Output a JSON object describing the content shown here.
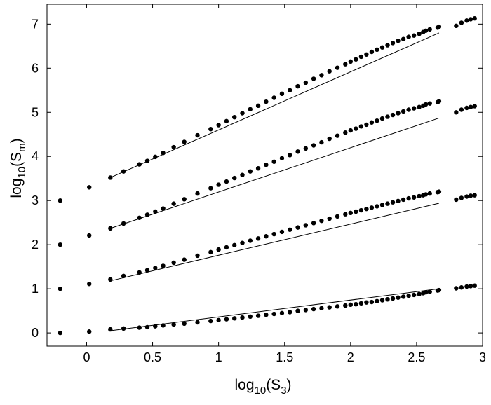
{
  "chart_data": {
    "type": "scatter",
    "title": "",
    "xlabel": {
      "base": "log",
      "subscript": "10",
      "inner": "(S",
      "inner_subscript": "3",
      "close": ")"
    },
    "ylabel": {
      "base": "log",
      "subscript": "10",
      "inner": "(S",
      "inner_subscript": "m",
      "close": ")"
    },
    "xlim": [
      -0.3,
      3.0
    ],
    "ylim": [
      -0.3,
      7.45
    ],
    "xticks": [
      0,
      0.5,
      1,
      1.5,
      2,
      2.5,
      3
    ],
    "xtick_labels": [
      "0",
      "0.5",
      "1",
      "1.5",
      "2",
      "2.5",
      "3"
    ],
    "yticks": [
      0,
      1,
      2,
      3,
      4,
      5,
      6,
      7
    ],
    "ytick_labels": [
      "0",
      "1",
      "2",
      "3",
      "4",
      "5",
      "6",
      "7"
    ],
    "grid": false,
    "legend": "none",
    "marker_color": "#000000",
    "line_color": "#000000",
    "x": [
      -0.2,
      0.02,
      0.18,
      0.28,
      0.4,
      0.46,
      0.52,
      0.58,
      0.66,
      0.74,
      0.84,
      0.94,
      1.0,
      1.06,
      1.12,
      1.18,
      1.24,
      1.3,
      1.36,
      1.42,
      1.48,
      1.54,
      1.6,
      1.66,
      1.72,
      1.78,
      1.84,
      1.9,
      1.96,
      2.0,
      2.04,
      2.08,
      2.12,
      2.16,
      2.2,
      2.24,
      2.28,
      2.32,
      2.36,
      2.4,
      2.44,
      2.48,
      2.52,
      2.55,
      2.57,
      2.6,
      2.66,
      2.67,
      2.8,
      2.84,
      2.88,
      2.91,
      2.94
    ],
    "series": [
      {
        "values": [
          3.0,
          3.3,
          3.52,
          3.66,
          3.82,
          3.9,
          3.99,
          4.08,
          4.21,
          4.33,
          4.48,
          4.62,
          4.71,
          4.8,
          4.89,
          4.98,
          5.07,
          5.15,
          5.24,
          5.33,
          5.42,
          5.5,
          5.59,
          5.67,
          5.76,
          5.84,
          5.93,
          6.01,
          6.09,
          6.15,
          6.2,
          6.26,
          6.31,
          6.37,
          6.42,
          6.47,
          6.52,
          6.57,
          6.62,
          6.66,
          6.71,
          6.74,
          6.78,
          6.82,
          6.85,
          6.88,
          6.92,
          6.94,
          6.96,
          7.03,
          7.08,
          7.11,
          7.13
        ],
        "fit": {
          "x": [
            0.18,
            2.67
          ],
          "y": [
            3.52,
            6.8
          ]
        }
      },
      {
        "values": [
          2.0,
          2.21,
          2.37,
          2.48,
          2.61,
          2.68,
          2.75,
          2.82,
          2.93,
          3.03,
          3.16,
          3.28,
          3.36,
          3.43,
          3.51,
          3.58,
          3.66,
          3.73,
          3.81,
          3.88,
          3.96,
          4.03,
          4.11,
          4.18,
          4.25,
          4.32,
          4.4,
          4.47,
          4.54,
          4.59,
          4.63,
          4.68,
          4.72,
          4.77,
          4.81,
          4.86,
          4.9,
          4.94,
          4.98,
          5.02,
          5.06,
          5.09,
          5.12,
          5.15,
          5.18,
          5.2,
          5.23,
          5.25,
          5.0,
          5.06,
          5.1,
          5.12,
          5.14
        ],
        "fit": {
          "x": [
            0.18,
            2.67
          ],
          "y": [
            2.37,
            4.87
          ]
        }
      },
      {
        "values": [
          1.0,
          1.11,
          1.21,
          1.29,
          1.37,
          1.42,
          1.47,
          1.52,
          1.59,
          1.66,
          1.75,
          1.83,
          1.89,
          1.94,
          1.99,
          2.04,
          2.09,
          2.14,
          2.19,
          2.24,
          2.29,
          2.34,
          2.39,
          2.44,
          2.49,
          2.54,
          2.59,
          2.64,
          2.69,
          2.72,
          2.75,
          2.78,
          2.81,
          2.84,
          2.87,
          2.9,
          2.93,
          2.96,
          2.99,
          3.02,
          3.05,
          3.07,
          3.1,
          3.12,
          3.14,
          3.16,
          3.19,
          3.2,
          3.02,
          3.06,
          3.09,
          3.11,
          3.12
        ],
        "fit": {
          "x": [
            0.18,
            2.67
          ],
          "y": [
            1.18,
            2.94
          ]
        }
      },
      {
        "values": [
          0.0,
          0.03,
          0.08,
          0.1,
          0.12,
          0.13,
          0.15,
          0.17,
          0.19,
          0.21,
          0.24,
          0.27,
          0.29,
          0.31,
          0.33,
          0.35,
          0.37,
          0.39,
          0.41,
          0.43,
          0.45,
          0.47,
          0.5,
          0.52,
          0.54,
          0.56,
          0.58,
          0.6,
          0.62,
          0.64,
          0.65,
          0.67,
          0.69,
          0.7,
          0.72,
          0.74,
          0.76,
          0.78,
          0.8,
          0.82,
          0.84,
          0.86,
          0.88,
          0.9,
          0.92,
          0.93,
          0.96,
          0.97,
          1.01,
          1.03,
          1.05,
          1.06,
          1.07
        ],
        "fit": {
          "x": [
            0.18,
            2.67
          ],
          "y": [
            0.05,
            1.0
          ]
        }
      }
    ]
  }
}
